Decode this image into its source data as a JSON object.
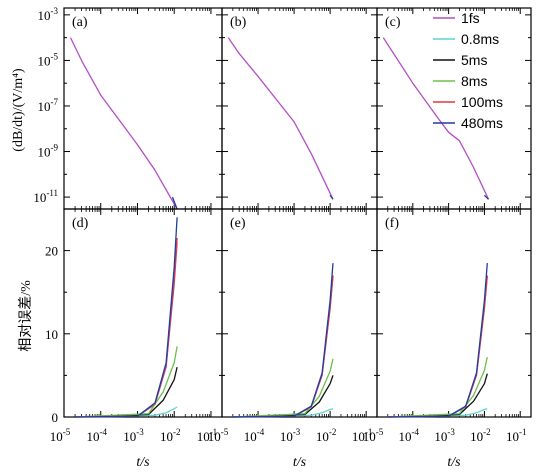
{
  "figure": {
    "top_y_label": "(dB/dt)/(V/m⁴)",
    "bottom_y_label": "相对误差/%",
    "x_label": "t/s",
    "panel_labels": [
      "(a)",
      "(b)",
      "(c)",
      "(d)",
      "(e)",
      "(f)"
    ]
  },
  "chart_data": [
    {
      "type": "line",
      "panel": "(a)",
      "xscale": "log",
      "yscale": "log",
      "xlim": [
        1e-05,
        0.2
      ],
      "ylim": [
        3e-12,
        0.002
      ],
      "ylabel": "(dB/dt)/(V/m⁴)",
      "series": [
        {
          "name": "1fs",
          "color": "#b44ec8",
          "points": [
            [
              1.5e-05,
              0.0001
            ],
            [
              3e-05,
              1e-05
            ],
            [
              0.0001,
              3e-07
            ],
            [
              0.001,
              2e-09
            ],
            [
              0.003,
              1.5e-10
            ],
            [
              0.012,
              3e-12
            ]
          ]
        },
        {
          "name": "480ms",
          "color": "#1f3f9f",
          "points": [
            [
              0.009,
              1e-11
            ],
            [
              0.012,
              3e-12
            ]
          ]
        }
      ]
    },
    {
      "type": "line",
      "panel": "(b)",
      "xscale": "log",
      "yscale": "log",
      "xlim": [
        1e-05,
        0.2
      ],
      "ylim": [
        3e-12,
        0.002
      ],
      "series": [
        {
          "name": "1fs",
          "color": "#b44ec8",
          "points": [
            [
              1.5e-05,
              0.0001
            ],
            [
              3e-05,
              2e-05
            ],
            [
              0.0001,
              2e-06
            ],
            [
              0.001,
              2e-08
            ],
            [
              0.003,
              8e-10
            ],
            [
              0.012,
              8e-12
            ]
          ]
        },
        {
          "name": "480ms",
          "color": "#1f3f9f",
          "points": [
            [
              0.01,
              1.2e-11
            ],
            [
              0.012,
              8e-12
            ]
          ]
        }
      ]
    },
    {
      "type": "line",
      "panel": "(c)",
      "xscale": "log",
      "yscale": "log",
      "xlim": [
        1e-05,
        0.2
      ],
      "ylim": [
        3e-12,
        0.002
      ],
      "series": [
        {
          "name": "1fs",
          "color": "#b44ec8",
          "points": [
            [
              1.5e-05,
              0.0001
            ],
            [
              0.0001,
              1e-06
            ],
            [
              0.0005,
              3e-08
            ],
            [
              0.001,
              7e-09
            ],
            [
              0.002,
              3e-09
            ],
            [
              0.005,
              2e-10
            ],
            [
              0.013,
              8e-12
            ]
          ]
        },
        {
          "name": "480ms",
          "color": "#1f3f9f",
          "points": [
            [
              0.01,
              1.2e-11
            ],
            [
              0.013,
              8e-12
            ]
          ]
        }
      ]
    },
    {
      "type": "line",
      "panel": "(d)",
      "xscale": "log",
      "xlim": [
        1e-05,
        0.2
      ],
      "ylim": [
        0,
        25
      ],
      "ylabel": "相对误差/%",
      "xlabel": "t/s",
      "series": [
        {
          "name": "1fs",
          "color": "#b44ec8",
          "points": [
            [
              2e-05,
              0
            ],
            [
              0.001,
              0.1
            ],
            [
              0.003,
              1.5
            ],
            [
              0.006,
              6
            ],
            [
              0.01,
              16
            ],
            [
              0.012,
              21
            ]
          ]
        },
        {
          "name": "0.8ms",
          "color": "#5fd3d0",
          "points": [
            [
              2e-05,
              0
            ],
            [
              0.003,
              0.2
            ],
            [
              0.006,
              0.5
            ],
            [
              0.01,
              1
            ],
            [
              0.012,
              1.2
            ]
          ]
        },
        {
          "name": "5ms",
          "color": "#111111",
          "points": [
            [
              2e-05,
              0
            ],
            [
              0.002,
              0.3
            ],
            [
              0.005,
              2
            ],
            [
              0.01,
              4.5
            ],
            [
              0.012,
              6
            ]
          ]
        },
        {
          "name": "8ms",
          "color": "#6cc04a",
          "points": [
            [
              2e-05,
              0
            ],
            [
              0.002,
              0.4
            ],
            [
              0.005,
              3
            ],
            [
              0.01,
              6.5
            ],
            [
              0.012,
              8.5
            ]
          ]
        },
        {
          "name": "100ms",
          "color": "#e03b3b",
          "points": [
            [
              2e-05,
              0
            ],
            [
              0.001,
              0.1
            ],
            [
              0.003,
              1.6
            ],
            [
              0.006,
              6.2
            ],
            [
              0.01,
              16.5
            ],
            [
              0.012,
              21.5
            ]
          ]
        },
        {
          "name": "480ms",
          "color": "#1f3f9f",
          "points": [
            [
              2e-05,
              0
            ],
            [
              0.001,
              0.1
            ],
            [
              0.003,
              1.7
            ],
            [
              0.006,
              6.5
            ],
            [
              0.01,
              18
            ],
            [
              0.012,
              24
            ]
          ]
        }
      ]
    },
    {
      "type": "line",
      "panel": "(e)",
      "xscale": "log",
      "xlim": [
        1e-05,
        0.2
      ],
      "ylim": [
        0,
        25
      ],
      "xlabel": "t/s",
      "series": [
        {
          "name": "1fs",
          "color": "#b44ec8",
          "points": [
            [
              2e-05,
              0
            ],
            [
              0.001,
              0.1
            ],
            [
              0.003,
              1.2
            ],
            [
              0.006,
              5
            ],
            [
              0.01,
              13
            ],
            [
              0.012,
              17
            ]
          ]
        },
        {
          "name": "0.8ms",
          "color": "#5fd3d0",
          "points": [
            [
              2e-05,
              0
            ],
            [
              0.003,
              0.2
            ],
            [
              0.006,
              0.5
            ],
            [
              0.01,
              0.9
            ],
            [
              0.012,
              1.0
            ]
          ]
        },
        {
          "name": "5ms",
          "color": "#111111",
          "points": [
            [
              2e-05,
              0
            ],
            [
              0.002,
              0.3
            ],
            [
              0.005,
              1.8
            ],
            [
              0.01,
              4
            ],
            [
              0.012,
              5
            ]
          ]
        },
        {
          "name": "8ms",
          "color": "#6cc04a",
          "points": [
            [
              2e-05,
              0
            ],
            [
              0.002,
              0.4
            ],
            [
              0.005,
              2.5
            ],
            [
              0.01,
              5.5
            ],
            [
              0.012,
              7
            ]
          ]
        },
        {
          "name": "100ms",
          "color": "#e03b3b",
          "points": [
            [
              2e-05,
              0
            ],
            [
              0.001,
              0.1
            ],
            [
              0.003,
              1.3
            ],
            [
              0.006,
              5.1
            ],
            [
              0.01,
              13.2
            ],
            [
              0.012,
              17
            ]
          ]
        },
        {
          "name": "480ms",
          "color": "#1f3f9f",
          "points": [
            [
              2e-05,
              0
            ],
            [
              0.001,
              0.1
            ],
            [
              0.003,
              1.3
            ],
            [
              0.006,
              5.3
            ],
            [
              0.01,
              14
            ],
            [
              0.012,
              18.5
            ]
          ]
        }
      ]
    },
    {
      "type": "line",
      "panel": "(f)",
      "xscale": "log",
      "xlim": [
        1e-05,
        0.2
      ],
      "ylim": [
        0,
        25
      ],
      "xlabel": "t/s",
      "series": [
        {
          "name": "1fs",
          "color": "#b44ec8",
          "points": [
            [
              2e-05,
              0
            ],
            [
              0.001,
              0.1
            ],
            [
              0.003,
              1.2
            ],
            [
              0.006,
              5
            ],
            [
              0.01,
              13
            ],
            [
              0.012,
              17
            ]
          ]
        },
        {
          "name": "0.8ms",
          "color": "#5fd3d0",
          "points": [
            [
              2e-05,
              0
            ],
            [
              0.003,
              0.2
            ],
            [
              0.006,
              0.5
            ],
            [
              0.01,
              0.9
            ],
            [
              0.012,
              1.0
            ]
          ]
        },
        {
          "name": "5ms",
          "color": "#111111",
          "points": [
            [
              2e-05,
              0
            ],
            [
              0.002,
              0.3
            ],
            [
              0.005,
              1.9
            ],
            [
              0.01,
              4
            ],
            [
              0.012,
              5.2
            ]
          ]
        },
        {
          "name": "8ms",
          "color": "#6cc04a",
          "points": [
            [
              2e-05,
              0
            ],
            [
              0.002,
              0.4
            ],
            [
              0.005,
              2.6
            ],
            [
              0.01,
              5.6
            ],
            [
              0.012,
              7.2
            ]
          ]
        },
        {
          "name": "100ms",
          "color": "#e03b3b",
          "points": [
            [
              2e-05,
              0
            ],
            [
              0.001,
              0.1
            ],
            [
              0.003,
              1.3
            ],
            [
              0.006,
              5.1
            ],
            [
              0.01,
              13.2
            ],
            [
              0.012,
              17
            ]
          ]
        },
        {
          "name": "480ms",
          "color": "#1f3f9f",
          "points": [
            [
              2e-05,
              0
            ],
            [
              0.001,
              0.1
            ],
            [
              0.003,
              1.3
            ],
            [
              0.006,
              5.3
            ],
            [
              0.01,
              14
            ],
            [
              0.012,
              18.5
            ]
          ]
        }
      ]
    }
  ],
  "legend": {
    "items": [
      {
        "label": "1fs",
        "color": "#b44ec8"
      },
      {
        "label": "0.8ms",
        "color": "#5fd3d0"
      },
      {
        "label": "5ms",
        "color": "#111111"
      },
      {
        "label": "8ms",
        "color": "#6cc04a"
      },
      {
        "label": "100ms",
        "color": "#e03b3b"
      },
      {
        "label": "480ms",
        "color": "#1f3f9f"
      }
    ]
  },
  "ticks": {
    "x": [
      {
        "label": "10",
        "exp": "-5",
        "value": 1e-05
      },
      {
        "label": "10",
        "exp": "-4",
        "value": 0.0001
      },
      {
        "label": "10",
        "exp": "-3",
        "value": 0.001
      },
      {
        "label": "10",
        "exp": "-2",
        "value": 0.01
      },
      {
        "label": "10",
        "exp": "-1",
        "value": 0.1
      }
    ],
    "top_y": [
      {
        "label": "10",
        "exp": "-3",
        "value": 0.001
      },
      {
        "label": "10",
        "exp": "-5",
        "value": 1e-05
      },
      {
        "label": "10",
        "exp": "-7",
        "value": 1e-07
      },
      {
        "label": "10",
        "exp": "-9",
        "value": 1e-09
      },
      {
        "label": "10",
        "exp": "-11",
        "value": 1e-11
      }
    ],
    "bottom_y": [
      {
        "label": "0",
        "value": 0
      },
      {
        "label": "10",
        "value": 10
      },
      {
        "label": "20",
        "value": 20
      }
    ]
  }
}
